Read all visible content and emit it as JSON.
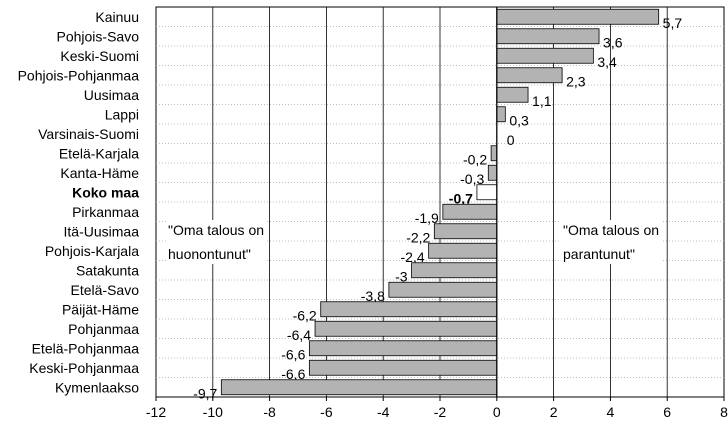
{
  "chart_data": {
    "type": "bar",
    "orientation": "horizontal",
    "title": "",
    "xlabel": "",
    "ylabel": "",
    "xlim": [
      -12,
      8
    ],
    "x_ticks": [
      "-12",
      "-10",
      "-8",
      "-6",
      "-4",
      "-2",
      "0",
      "2",
      "4",
      "6",
      "8"
    ],
    "grid": "vertical major gridlines, dotted row separators",
    "categories": [
      "Kainuu",
      "Pohjois-Savo",
      "Keski-Suomi",
      "Pohjois-Pohjanmaa",
      "Uusimaa",
      "Lappi",
      "Varsinais-Suomi",
      "Etelä-Karjala",
      "Kanta-Häme",
      "Koko maa",
      "Pirkanmaa",
      "Itä-Uusimaa",
      "Pohjois-Karjala",
      "Satakunta",
      "Etelä-Savo",
      "Päijät-Häme",
      "Pohjanmaa",
      "Etelä-Pohjanmaa",
      "Keski-Pohjanmaa",
      "Kymenlaakso"
    ],
    "values": [
      5.7,
      3.6,
      3.4,
      2.3,
      1.1,
      0.3,
      0,
      -0.2,
      -0.3,
      -0.7,
      -1.9,
      -2.2,
      -2.4,
      -3,
      -3.8,
      -6.2,
      -6.4,
      -6.6,
      -6.6,
      -9.7
    ],
    "data_labels": [
      "5,7",
      "3,6",
      "3,4",
      "2,3",
      "1,1",
      "0,3",
      "0",
      "-0,2",
      "-0,3",
      "-0,7",
      "-1,9",
      "-2,2",
      "-2,4",
      "-3",
      "-3,8",
      "-6,2",
      "-6,4",
      "-6,6",
      "-6,6",
      "-9,7"
    ],
    "highlight_category": "Koko maa",
    "colors": {
      "bar": "#b3b3b3",
      "bar_highlight": "#ffffff",
      "bar_stroke": "#000000",
      "grid": "#000000",
      "row_separator": "#aaaaaa"
    },
    "annotations": [
      {
        "side": "negative",
        "lines": [
          "\"Oma talous on",
          "huonontunut\""
        ]
      },
      {
        "side": "positive",
        "lines": [
          "\"Oma talous on",
          "parantunut\""
        ]
      }
    ]
  }
}
